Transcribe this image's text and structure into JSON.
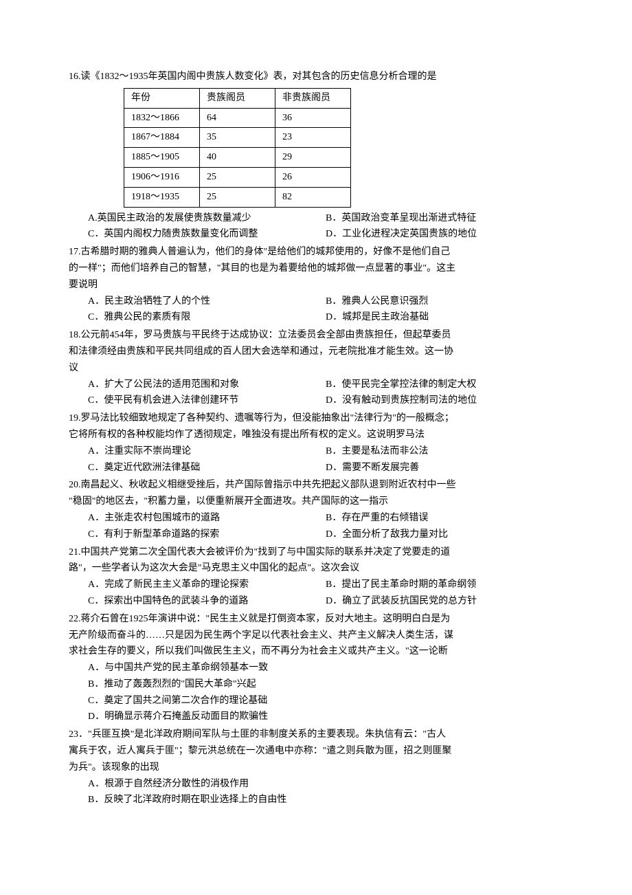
{
  "q16": {
    "text": "16.读《1832～1935年英国内阁中贵族人数变化》表，对其包含的历史信息分析合理的是",
    "table": {
      "headers": [
        "年份",
        "贵族阁员",
        "非贵族阁员"
      ],
      "rows": [
        [
          "1832～1866",
          "64",
          "36"
        ],
        [
          "1867～1884",
          "  35",
          "23"
        ],
        [
          "1885～1905",
          "  40",
          "29"
        ],
        [
          "1906～1916",
          "25",
          "26"
        ],
        [
          "1918～1935",
          "25",
          "82"
        ]
      ]
    },
    "optA": "A.英国民主政治的发展使贵族数量减少",
    "optB": "B．英国政治变革呈现出渐进式特征",
    "optC": "C．英国内阁权力随贵族数量变化而调整",
    "optD": "D．工业化进程决定英国贵族的地位"
  },
  "q17": {
    "line1": "17.古希腊时期的雅典人普遍认为，他们的身体\"是给他们的城邦使用的，好像不是他们自己",
    "line2": "的一样\"；而他们培养自己的智慧，\"其目的也是为着要给他的城邦做一点显著的事业\"。这主",
    "line3": "要说明",
    "optA": "A．民主政治牺牲了人的个性",
    "optB": "B．雅典人公民意识强烈",
    "optC": "C．雅典公民的素质有限",
    "optD": "D．城邦是民主政治基础"
  },
  "q18": {
    "line1": "18.公元前454年，罗马贵族与平民终于达成协议：立法委员会全部由贵族担任，但起草委员",
    "line2": "和法律须经由贵族和平民共同组成的百人团大会选举和通过，元老院批准才能生效。这一协",
    "line3": "议",
    "optA": "A．扩大了公民法的适用范围和对象",
    "optB": "B．使平民完全掌控法律的制定大权",
    "optC": "C．使平民有机会进入法律创建环节",
    "optD": "D．没有触动到贵族控制司法的地位"
  },
  "q19": {
    "line1": "19.罗马法比较细致地规定了各种契约、遗嘱等行为，但没能抽象出\"法律行为\"的一般概念；",
    "line2": "它将所有权的各种权能均作了透彻规定，唯独没有提出所有权的定义。这说明罗马法",
    "optA": "A．注重实际不崇尚理论",
    "optB": "B．主要是私法而非公法",
    "optC": "C．奠定近代欧洲法律基础",
    "optD": "D．需要不断发展完善"
  },
  "q20": {
    "line1": "20.南昌起义、秋收起义相继受挫后，共产国际曾指示中共先把起义部队退到附近农村中一些",
    "line2": "\"稳固\"的地区去，\"积蓄力量，以便重新展开全面进攻。共产国际的这一指示",
    "optA": "A．主张走农村包围城市的道路",
    "optB": "B．存在严重的右倾错误",
    "optC": "C．有利于新型革命道路的探索",
    "optD": "D．全面分析了敌我力量对比"
  },
  "q21": {
    "line1": "21.中国共产党第二次全国代表大会被评价为\"找到了与中国实际的联系并决定了党要走的道",
    "line2": "路\"，一些学者认为这次大会是\"马克思主义中国化的起点\"。这次会议",
    "optA": "A．完成了新民主主义革命的理论探索",
    "optB": "B．提出了民主革命时期的革命纲领",
    "optC": "C．探索出中国特色的武装斗争的道路",
    "optD": "D．确立了武装反抗国民党的总方针"
  },
  "q22": {
    "line1": "22.蒋介石曾在1925年演讲中说：\"民生主义就是打倒资本家，反对大地主。这明明白白是为",
    "line2": "无产阶级而奋斗的……只是因为民生两个字足以代表社会主义、共产主义解决人类生活，谋",
    "line3": "求社会生存的要义，所以我们叫做民生主义，而不再分为社会主义或共产主义。\"这一论断",
    "optA": "A．与中国共产党的民主革命纲领基本一致",
    "optB": "B．推动了轰轰烈烈的\"国民大革命\"兴起",
    "optC": "C．奠定了国共之间第二次合作的理论基础",
    "optD": "D．明确显示蒋介石掩盖反动面目的欺骗性"
  },
  "q23": {
    "line1": "23．\"兵匪互换\"是北洋政府期间军队与土匪的非制度关系的主要表现。朱执信有云：\"古人",
    "line2": "寓兵于农，近人寓兵于匪\"；黎元洪总统在一次通电中亦称：\"遣之则兵散为匪，招之则匪聚",
    "line3": "为兵\"。该现象的出现",
    "optA": "A．根源于自然经济分散性的消极作用",
    "optB": "B．反映了北洋政府时期在职业选择上的自由性"
  }
}
